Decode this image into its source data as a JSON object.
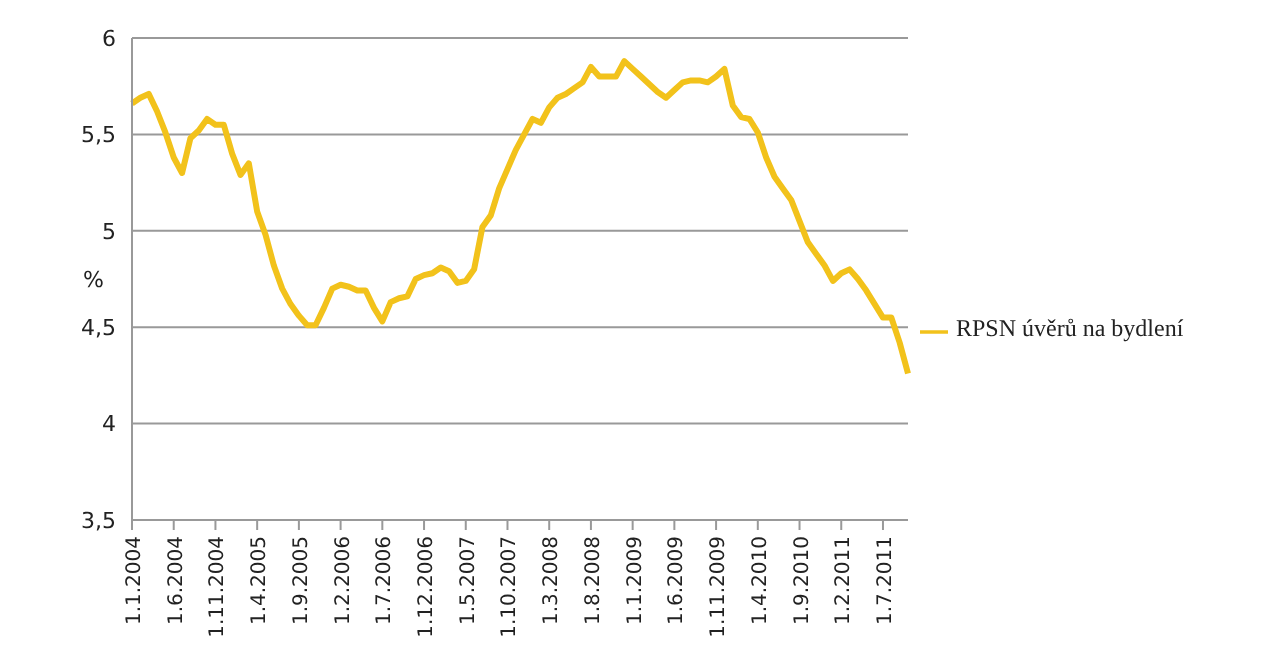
{
  "chart_data": {
    "type": "line",
    "ylabel": "%",
    "categories": [
      "1.1.2004",
      null,
      null,
      null,
      null,
      "1.6.2004",
      null,
      null,
      null,
      null,
      "1.11.2004",
      null,
      null,
      null,
      null,
      "1.4.2005",
      null,
      null,
      null,
      null,
      "1.9.2005",
      null,
      null,
      null,
      null,
      "1.2.2006",
      null,
      null,
      null,
      null,
      "1.7.2006",
      null,
      null,
      null,
      null,
      "1.12.2006",
      null,
      null,
      null,
      null,
      "1.5.2007",
      null,
      null,
      null,
      null,
      "1.10.2007",
      null,
      null,
      null,
      null,
      "1.3.2008",
      null,
      null,
      null,
      null,
      "1.8.2008",
      null,
      null,
      null,
      null,
      "1.1.2009",
      null,
      null,
      null,
      null,
      "1.6.2009",
      null,
      null,
      null,
      null,
      "1.11.2009",
      null,
      null,
      null,
      null,
      "1.4.2010",
      null,
      null,
      null,
      null,
      "1.9.2010",
      null,
      null,
      null,
      null,
      "1.2.2011",
      null,
      null,
      null,
      null,
      "1.7.2011",
      null,
      null,
      null
    ],
    "series": [
      {
        "name": "RPSN úvěrů na bydlení",
        "color": "#f2c21b",
        "values": [
          5.66,
          5.69,
          5.71,
          5.62,
          5.51,
          5.38,
          5.3,
          5.48,
          5.52,
          5.58,
          5.55,
          5.55,
          5.4,
          5.29,
          5.35,
          5.1,
          4.98,
          4.82,
          4.7,
          4.62,
          4.56,
          4.51,
          4.51,
          4.6,
          4.7,
          4.72,
          4.71,
          4.69,
          4.69,
          4.6,
          4.53,
          4.63,
          4.65,
          4.66,
          4.75,
          4.77,
          4.78,
          4.81,
          4.79,
          4.73,
          4.74,
          4.8,
          5.02,
          5.08,
          5.22,
          5.32,
          5.42,
          5.5,
          5.58,
          5.56,
          5.64,
          5.69,
          5.71,
          5.74,
          5.77,
          5.85,
          5.8,
          5.8,
          5.8,
          5.88,
          5.84,
          5.8,
          5.76,
          5.72,
          5.69,
          5.73,
          5.77,
          5.78,
          5.78,
          5.77,
          5.8,
          5.84,
          5.65,
          5.59,
          5.58,
          5.51,
          5.38,
          5.28,
          5.22,
          5.16,
          5.05,
          4.94,
          4.88,
          4.82,
          4.74,
          4.78,
          4.8,
          4.75,
          4.69,
          4.62,
          4.55,
          4.55,
          4.42,
          4.26
        ]
      }
    ],
    "ylim": [
      3.5,
      6
    ],
    "yticks": [
      {
        "value": 3.5,
        "label": "3,5"
      },
      4,
      {
        "value": 4.5,
        "label": "4,5"
      },
      5,
      {
        "value": 5.5,
        "label": "5,5"
      },
      6
    ],
    "grid": "y",
    "legend": "right",
    "marker": "none",
    "line_style": "solid"
  }
}
